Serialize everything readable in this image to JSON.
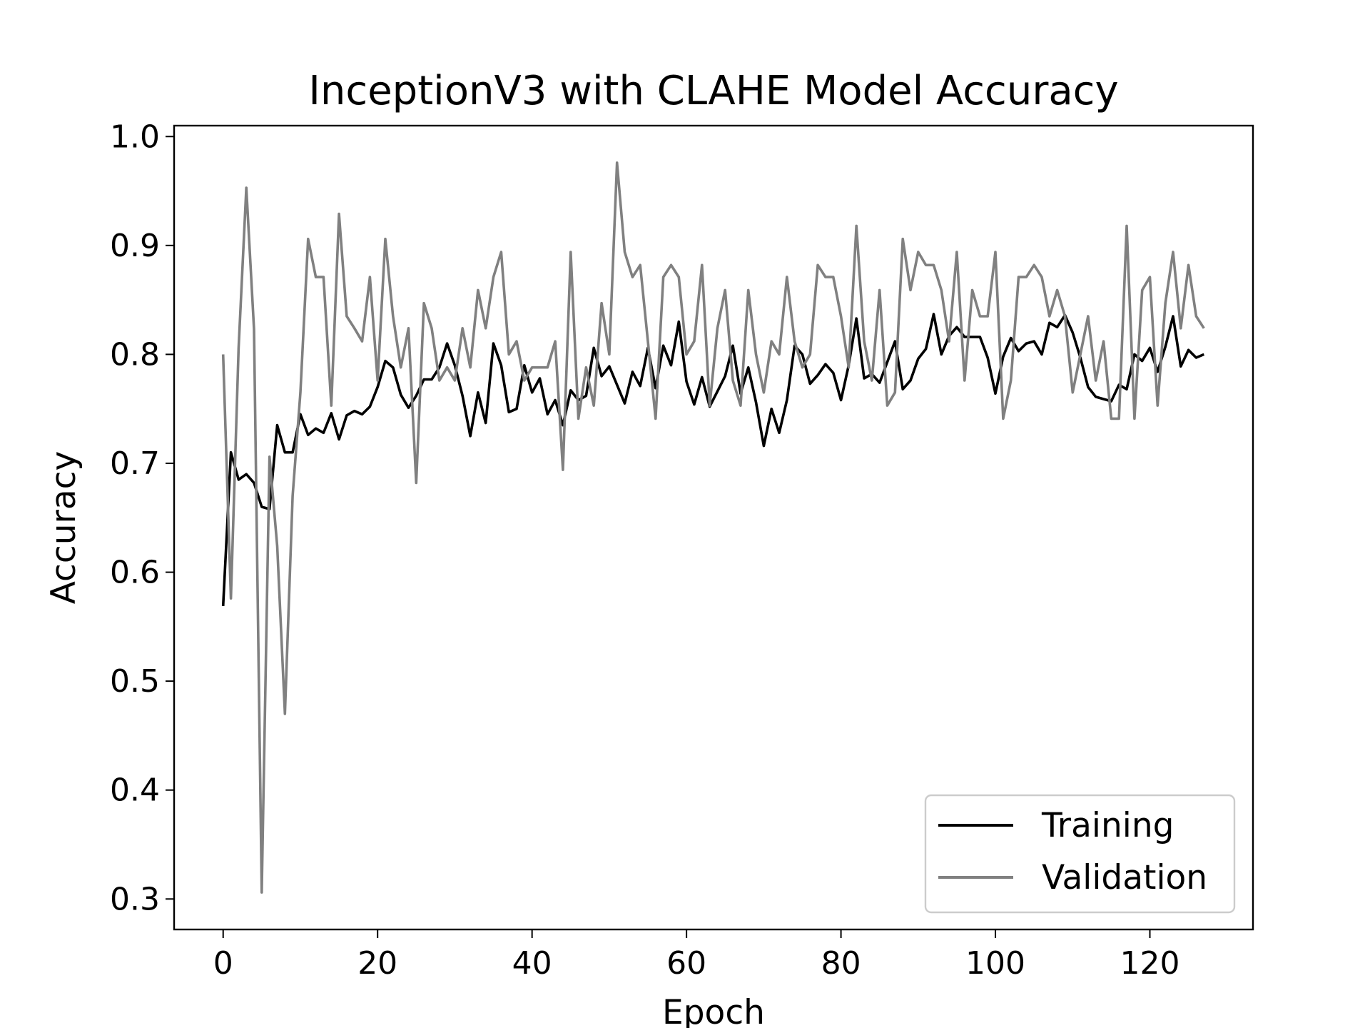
{
  "chart_data": {
    "type": "line",
    "title": "InceptionV3 with CLAHE Model Accuracy",
    "xlabel": "Epoch",
    "ylabel": "Accuracy",
    "xlim": [
      -6.35,
      133.35
    ],
    "ylim": [
      0.272,
      1.01
    ],
    "xticks": [
      0,
      20,
      40,
      60,
      80,
      100,
      120
    ],
    "xtick_labels": [
      "0",
      "20",
      "40",
      "60",
      "80",
      "100",
      "120"
    ],
    "yticks": [
      0.3,
      0.4,
      0.5,
      0.6,
      0.7,
      0.8,
      0.9,
      1.0
    ],
    "ytick_labels": [
      "0.3",
      "0.4",
      "0.5",
      "0.6",
      "0.7",
      "0.8",
      "0.9",
      "1.0"
    ],
    "grid": false,
    "legend_position": "lower-right",
    "series": [
      {
        "name": "Training",
        "color": "#000000",
        "values": [
          0.569,
          0.71,
          0.685,
          0.69,
          0.682,
          0.66,
          0.658,
          0.735,
          0.71,
          0.71,
          0.745,
          0.726,
          0.732,
          0.728,
          0.746,
          0.722,
          0.744,
          0.748,
          0.745,
          0.752,
          0.77,
          0.794,
          0.788,
          0.763,
          0.751,
          0.762,
          0.777,
          0.777,
          0.788,
          0.81,
          0.79,
          0.762,
          0.725,
          0.765,
          0.737,
          0.81,
          0.79,
          0.747,
          0.75,
          0.79,
          0.765,
          0.778,
          0.745,
          0.758,
          0.735,
          0.767,
          0.758,
          0.762,
          0.806,
          0.78,
          0.789,
          0.772,
          0.755,
          0.784,
          0.771,
          0.806,
          0.769,
          0.808,
          0.79,
          0.83,
          0.775,
          0.754,
          0.779,
          0.752,
          0.766,
          0.78,
          0.808,
          0.764,
          0.788,
          0.756,
          0.716,
          0.75,
          0.728,
          0.758,
          0.808,
          0.8,
          0.773,
          0.781,
          0.791,
          0.783,
          0.758,
          0.79,
          0.833,
          0.778,
          0.782,
          0.774,
          0.793,
          0.812,
          0.768,
          0.776,
          0.796,
          0.805,
          0.837,
          0.8,
          0.817,
          0.825,
          0.816,
          0.816,
          0.816,
          0.797,
          0.764,
          0.798,
          0.815,
          0.803,
          0.81,
          0.812,
          0.8,
          0.829,
          0.825,
          0.836,
          0.82,
          0.797,
          0.77,
          0.761,
          0.759,
          0.757,
          0.772,
          0.768,
          0.8,
          0.794,
          0.806,
          0.784,
          0.807,
          0.835,
          0.789,
          0.804,
          0.797,
          0.8
        ]
      },
      {
        "name": "Validation",
        "color": "#808080",
        "values": [
          0.8,
          0.576,
          0.806,
          0.953,
          0.823,
          0.306,
          0.706,
          0.624,
          0.47,
          0.67,
          0.765,
          0.906,
          0.871,
          0.871,
          0.753,
          0.929,
          0.835,
          0.824,
          0.812,
          0.871,
          0.776,
          0.906,
          0.835,
          0.788,
          0.824,
          0.682,
          0.847,
          0.824,
          0.776,
          0.788,
          0.776,
          0.824,
          0.788,
          0.859,
          0.824,
          0.871,
          0.894,
          0.8,
          0.812,
          0.776,
          0.788,
          0.788,
          0.788,
          0.812,
          0.694,
          0.894,
          0.741,
          0.788,
          0.753,
          0.847,
          0.8,
          0.976,
          0.894,
          0.871,
          0.882,
          0.812,
          0.741,
          0.871,
          0.882,
          0.871,
          0.8,
          0.812,
          0.882,
          0.753,
          0.824,
          0.859,
          0.776,
          0.753,
          0.859,
          0.8,
          0.765,
          0.812,
          0.8,
          0.871,
          0.812,
          0.788,
          0.8,
          0.882,
          0.871,
          0.871,
          0.835,
          0.788,
          0.918,
          0.812,
          0.776,
          0.859,
          0.753,
          0.765,
          0.906,
          0.859,
          0.894,
          0.882,
          0.882,
          0.859,
          0.812,
          0.894,
          0.776,
          0.859,
          0.835,
          0.835,
          0.894,
          0.741,
          0.776,
          0.871,
          0.871,
          0.882,
          0.871,
          0.835,
          0.859,
          0.835,
          0.765,
          0.8,
          0.835,
          0.776,
          0.812,
          0.741,
          0.741,
          0.918,
          0.741,
          0.859,
          0.871,
          0.753,
          0.847,
          0.894,
          0.824,
          0.882,
          0.835,
          0.824
        ]
      }
    ]
  }
}
